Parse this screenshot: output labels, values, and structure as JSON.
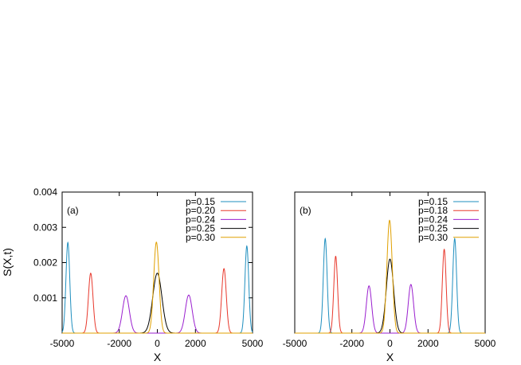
{
  "ylabel": "S(X,t)",
  "chart_data": [
    {
      "type": "line",
      "panel_label": "(a)",
      "xlabel": "X",
      "ylabel": "S(X,t)",
      "xlim": [
        -5000,
        5000
      ],
      "ylim": [
        0,
        0.004
      ],
      "xticks": [
        -5000,
        -2000,
        0,
        2000,
        5000
      ],
      "xtick_labels": [
        "-5000",
        "-2000",
        "0",
        "2000",
        "5000"
      ],
      "yticks": [
        0.001,
        0.002,
        0.003,
        0.004
      ],
      "ytick_labels": [
        "0.001",
        "0.002",
        "0.003",
        "0.004"
      ],
      "grid": false,
      "legend_position": "top-right",
      "series": [
        {
          "name": "p=0.15",
          "color": "#1f8fbf",
          "peaks": [
            {
              "center": -4700,
              "height": 0.00257,
              "width": 100
            },
            {
              "center": 4700,
              "height": 0.00247,
              "width": 100
            }
          ]
        },
        {
          "name": "p=0.20",
          "color": "#e8382c",
          "peaks": [
            {
              "center": -3500,
              "height": 0.0017,
              "width": 120
            },
            {
              "center": 3500,
              "height": 0.00183,
              "width": 120
            }
          ]
        },
        {
          "name": "p=0.24",
          "color": "#9a1fcf",
          "peaks": [
            {
              "center": -1650,
              "height": 0.00106,
              "width": 180
            },
            {
              "center": 1650,
              "height": 0.00108,
              "width": 180
            }
          ]
        },
        {
          "name": "p=0.25",
          "color": "#000000",
          "peaks": [
            {
              "center": 0,
              "height": 0.0017,
              "width": 240
            }
          ]
        },
        {
          "name": "p=0.30",
          "color": "#e0a000",
          "peaks": [
            {
              "center": -50,
              "height": 0.00258,
              "width": 140
            }
          ]
        }
      ]
    },
    {
      "type": "line",
      "panel_label": "(b)",
      "xlabel": "X",
      "ylabel": "",
      "xlim": [
        -5000,
        5000
      ],
      "ylim": [
        0,
        0.004
      ],
      "xticks": [
        -5000,
        -2000,
        0,
        2000,
        5000
      ],
      "xtick_labels": [
        "-5000",
        "-2000",
        "0",
        "2000",
        "5000"
      ],
      "yticks": [],
      "ytick_labels": [],
      "grid": false,
      "legend_position": "top-right",
      "series": [
        {
          "name": "p=0.15",
          "color": "#1f8fbf",
          "peaks": [
            {
              "center": -3400,
              "height": 0.00268,
              "width": 100
            },
            {
              "center": 3400,
              "height": 0.00268,
              "width": 100
            }
          ]
        },
        {
          "name": "p=0.18",
          "color": "#e8382c",
          "peaks": [
            {
              "center": -2850,
              "height": 0.00218,
              "width": 100
            },
            {
              "center": 2850,
              "height": 0.00238,
              "width": 100
            }
          ]
        },
        {
          "name": "p=0.24",
          "color": "#9a1fcf",
          "peaks": [
            {
              "center": -1100,
              "height": 0.00134,
              "width": 140
            },
            {
              "center": 1100,
              "height": 0.00138,
              "width": 140
            }
          ]
        },
        {
          "name": "p=0.25",
          "color": "#000000",
          "peaks": [
            {
              "center": 0,
              "height": 0.0021,
              "width": 190
            }
          ]
        },
        {
          "name": "p=0.30",
          "color": "#e0a000",
          "peaks": [
            {
              "center": -20,
              "height": 0.0032,
              "width": 140
            }
          ]
        }
      ]
    }
  ]
}
